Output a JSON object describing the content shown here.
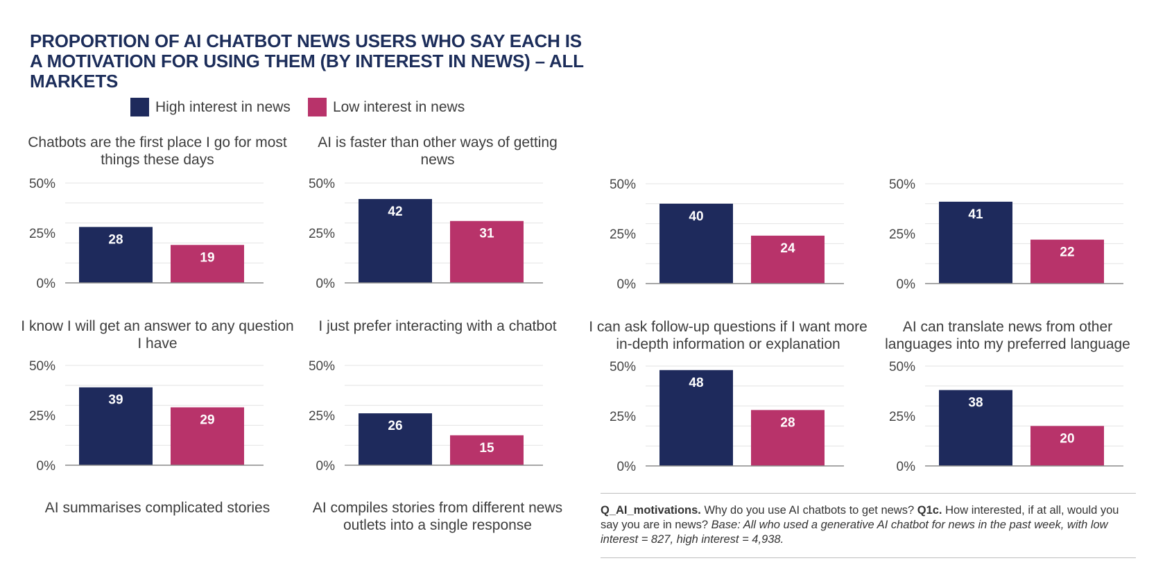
{
  "title": "PROPORTION OF AI CHATBOT NEWS USERS WHO SAY EACH IS A MOTIVATION FOR USING THEM (BY INTEREST IN NEWS) – ALL MARKETS",
  "legend": [
    {
      "label": "High interest in news",
      "color": "#1e2a5c"
    },
    {
      "label": "Low interest in news",
      "color": "#b8336a"
    }
  ],
  "panel_titles": {
    "p1": "Chatbots are the first place I go for most things these days",
    "p2": "AI is faster than other ways of getting news",
    "p5": "I know I will get an answer to any question I have",
    "p6": "I just prefer interacting with a chatbot",
    "p7": "I can ask follow-up questions if I want more in-depth information or explanation",
    "p8": "AI can translate news from other languages into my preferred language",
    "p9": "AI summarises complicated stories",
    "p10": "AI compiles stories from different news outlets into a single response"
  },
  "note": {
    "q1": "Q_AI_motivations.",
    "t1": " Why do you use AI chatbots to get news? ",
    "q2": "Q1c.",
    "t2": " How interested, if at all, would you say you are in news? ",
    "base": "Base: All who used a generative AI chatbot for news in the past week, with low interest = 827, high interest = 4,938."
  },
  "chart_data": [
    {
      "type": "bar",
      "categories": [
        "High interest in news",
        "Low interest in news"
      ],
      "values": [
        28,
        19
      ],
      "ylim": [
        0,
        50
      ],
      "yticks": [
        "0%",
        "25%",
        "50%"
      ],
      "title": "Chatbots are the first place I go for most things these days"
    },
    {
      "type": "bar",
      "categories": [
        "High interest in news",
        "Low interest in news"
      ],
      "values": [
        42,
        31
      ],
      "ylim": [
        0,
        50
      ],
      "yticks": [
        "0%",
        "25%",
        "50%"
      ],
      "title": "AI is faster than other ways of getting news"
    },
    {
      "type": "bar",
      "categories": [
        "High interest in news",
        "Low interest in news"
      ],
      "values": [
        40,
        24
      ],
      "ylim": [
        0,
        50
      ],
      "yticks": [
        "0%",
        "25%",
        "50%"
      ],
      "title": ""
    },
    {
      "type": "bar",
      "categories": [
        "High interest in news",
        "Low interest in news"
      ],
      "values": [
        41,
        22
      ],
      "ylim": [
        0,
        50
      ],
      "yticks": [
        "0%",
        "25%",
        "50%"
      ],
      "title": ""
    },
    {
      "type": "bar",
      "categories": [
        "High interest in news",
        "Low interest in news"
      ],
      "values": [
        39,
        29
      ],
      "ylim": [
        0,
        50
      ],
      "yticks": [
        "0%",
        "25%",
        "50%"
      ],
      "title": "I know I will get an answer to any question I have"
    },
    {
      "type": "bar",
      "categories": [
        "High interest in news",
        "Low interest in news"
      ],
      "values": [
        26,
        15
      ],
      "ylim": [
        0,
        50
      ],
      "yticks": [
        "0%",
        "25%",
        "50%"
      ],
      "title": "I just prefer interacting with a chatbot"
    },
    {
      "type": "bar",
      "categories": [
        "High interest in news",
        "Low interest in news"
      ],
      "values": [
        48,
        28
      ],
      "ylim": [
        0,
        50
      ],
      "yticks": [
        "0%",
        "25%",
        "50%"
      ],
      "title": "I can ask follow-up questions if I want more in-depth information or explanation"
    },
    {
      "type": "bar",
      "categories": [
        "High interest in news",
        "Low interest in news"
      ],
      "values": [
        38,
        20
      ],
      "ylim": [
        0,
        50
      ],
      "yticks": [
        "0%",
        "25%",
        "50%"
      ],
      "title": "AI can translate news from other languages into my preferred language"
    }
  ]
}
